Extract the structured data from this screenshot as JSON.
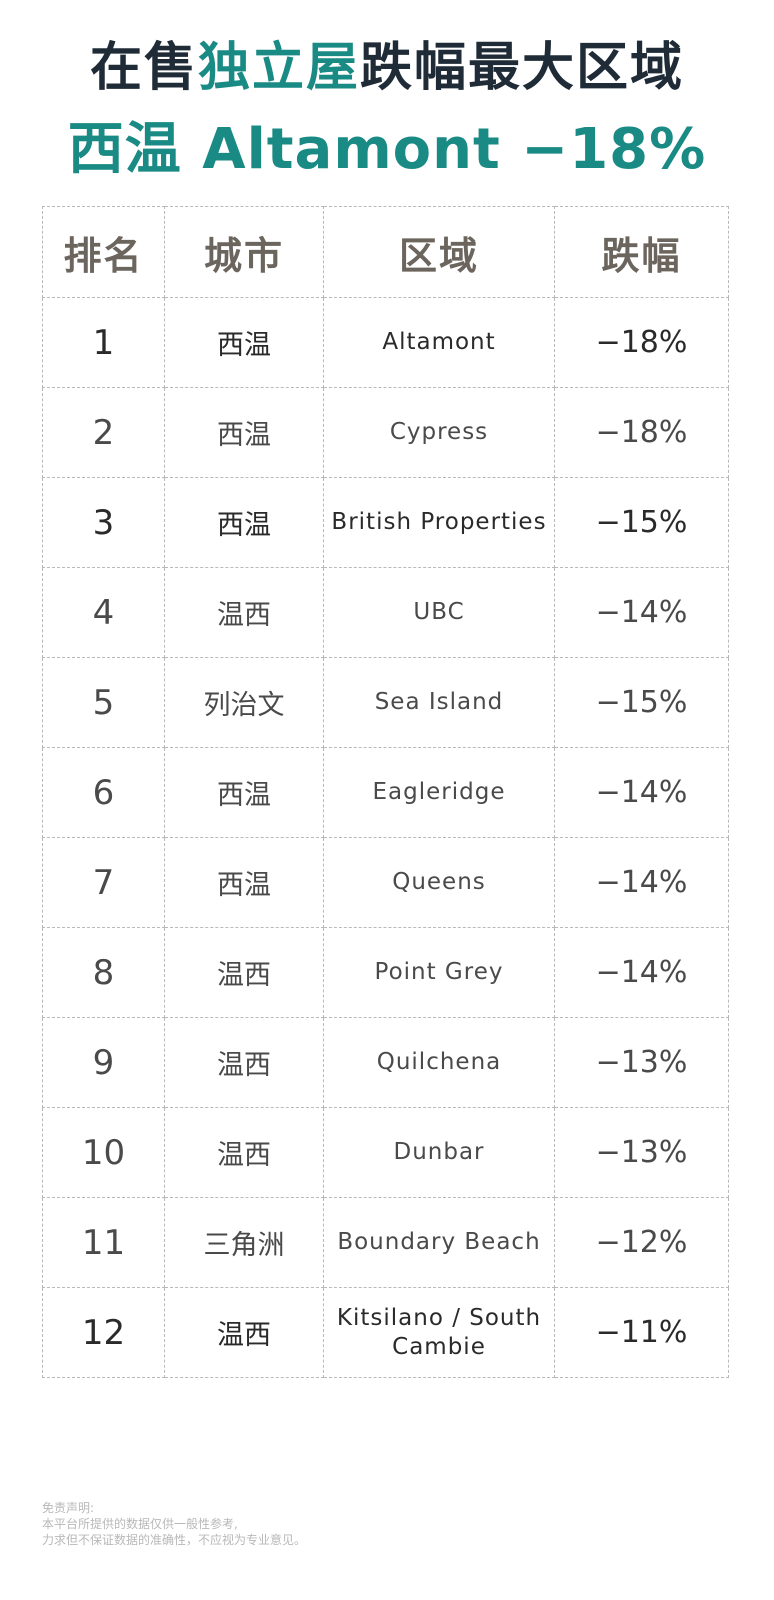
{
  "header": {
    "title_prefix": "在售",
    "title_accent": "独立屋",
    "title_suffix": "跌幅最大区域",
    "subtitle": "西温 Altamont −18%"
  },
  "table": {
    "columns": [
      "排名",
      "城市",
      "区域",
      "跌幅"
    ],
    "rows": [
      {
        "rank": "1",
        "city": "西温",
        "area": "Altamont",
        "change": "−18%"
      },
      {
        "rank": "2",
        "city": "西温",
        "area": "Cypress",
        "change": "−18%"
      },
      {
        "rank": "3",
        "city": "西温",
        "area": "British Properties",
        "change": "−15%"
      },
      {
        "rank": "4",
        "city": "温西",
        "area": "UBC",
        "change": "−14%"
      },
      {
        "rank": "5",
        "city": "列治文",
        "area": "Sea Island",
        "change": "−15%"
      },
      {
        "rank": "6",
        "city": "西温",
        "area": "Eagleridge",
        "change": "−14%"
      },
      {
        "rank": "7",
        "city": "西温",
        "area": "Queens",
        "change": "−14%"
      },
      {
        "rank": "8",
        "city": "温西",
        "area": "Point Grey",
        "change": "−14%"
      },
      {
        "rank": "9",
        "city": "温西",
        "area": "Quilchena",
        "change": "−13%"
      },
      {
        "rank": "10",
        "city": "温西",
        "area": "Dunbar",
        "change": "−13%"
      },
      {
        "rank": "11",
        "city": "三角洲",
        "area": "Boundary Beach",
        "change": "−12%"
      },
      {
        "rank": "12",
        "city": "温西",
        "area": "Kitsilano / South Cambie",
        "change": "−11%"
      }
    ]
  },
  "disclaimer": {
    "line1": "免责声明:",
    "line2": "本平台所提供的数据仅供一般性参考,",
    "line3": "力求但不保证数据的准确性，不应视为专业意见。"
  }
}
